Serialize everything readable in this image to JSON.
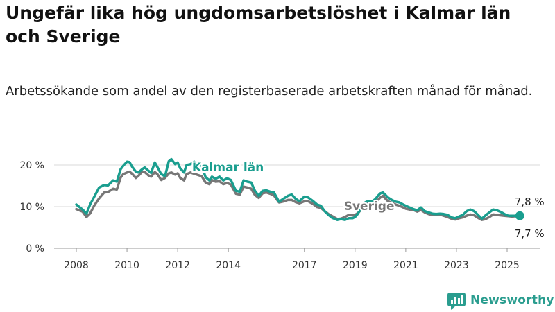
{
  "title": "Ungefär lika hög ungdomsarbetslöshet i Kalmar län och Sverige",
  "subtitle": "Arbetssökande som andel av den registerbaserade arbetskraften månad för månad.",
  "brand": "Newsworthy",
  "colors": {
    "kalmar": "#1a9e8f",
    "sverige": "#777777",
    "brand": "#2a9d8f",
    "grid": "#d9d9d9"
  },
  "chart_data": {
    "type": "line",
    "title": "Ungefär lika hög ungdomsarbetslöshet i Kalmar län och Sverige",
    "xlabel": "",
    "ylabel": "",
    "xlim": [
      2008,
      2026
    ],
    "ylim": [
      0,
      20
    ],
    "x_ticks": [
      2008,
      2010,
      2012,
      2014,
      2017,
      2019,
      2021,
      2023,
      2025
    ],
    "y_ticks": [
      {
        "value": 0,
        "label": "0 %"
      },
      {
        "value": 10,
        "label": "10 %"
      },
      {
        "value": 20,
        "label": "20 %"
      }
    ],
    "grid": true,
    "series": [
      {
        "name": "Kalmar län",
        "x": [
          2008.0,
          2008.25,
          2008.4,
          2008.55,
          2008.7,
          2008.9,
          2009.1,
          2009.25,
          2009.45,
          2009.6,
          2009.75,
          2009.85,
          2010.0,
          2010.1,
          2010.2,
          2010.35,
          2010.45,
          2010.6,
          2010.7,
          2010.85,
          2010.95,
          2011.1,
          2011.2,
          2011.35,
          2011.5,
          2011.65,
          2011.75,
          2011.9,
          2012.0,
          2012.1,
          2012.25,
          2012.35,
          2012.5,
          2012.65,
          2012.8,
          2012.95,
          2013.1,
          2013.25,
          2013.35,
          2013.5,
          2013.65,
          2013.8,
          2013.95,
          2014.1,
          2014.3,
          2014.45,
          2014.6,
          2014.75,
          2014.9,
          2015.05,
          2015.2,
          2015.35,
          2015.5,
          2015.65,
          2015.8,
          2016.0,
          2016.15,
          2016.35,
          2016.5,
          2016.65,
          2016.8,
          2017.0,
          2017.15,
          2017.35,
          2017.5,
          2017.65,
          2017.8,
          2017.95,
          2018.1,
          2018.3,
          2018.45,
          2018.6,
          2018.75,
          2018.9,
          2019.0,
          2019.1,
          2019.2,
          2019.3,
          2019.45,
          2019.55,
          2019.7,
          2019.8,
          2019.9,
          2020.0,
          2020.1,
          2020.2,
          2020.3,
          2020.45,
          2020.6,
          2020.75,
          2020.9,
          2021.0,
          2021.15,
          2021.3,
          2021.45,
          2021.6,
          2021.75,
          2021.9,
          2022.05,
          2022.2,
          2022.35,
          2022.5,
          2022.65,
          2022.8,
          2022.95,
          2023.1,
          2023.25,
          2023.4,
          2023.55,
          2023.7,
          2023.85,
          2024.0,
          2024.15,
          2024.3,
          2024.45,
          2024.6,
          2024.75,
          2024.9,
          2025.05,
          2025.2,
          2025.35,
          2025.5
        ],
        "y": [
          10.5,
          9.3,
          8.3,
          10.6,
          12.3,
          14.6,
          15.2,
          15.1,
          16.3,
          16.0,
          19.0,
          19.8,
          20.8,
          20.7,
          19.6,
          18.4,
          18.2,
          19.0,
          19.4,
          18.6,
          18.1,
          20.6,
          19.5,
          17.8,
          17.3,
          20.9,
          21.4,
          20.2,
          20.6,
          19.2,
          18.2,
          20.0,
          20.2,
          20.8,
          20.1,
          19.8,
          17.1,
          16.3,
          17.2,
          16.7,
          17.2,
          16.3,
          16.8,
          16.4,
          13.8,
          13.6,
          16.3,
          16.0,
          15.8,
          13.8,
          12.6,
          13.8,
          13.9,
          13.6,
          13.4,
          11.2,
          11.8,
          12.6,
          12.9,
          11.9,
          11.3,
          12.4,
          12.2,
          11.3,
          10.5,
          10.2,
          8.9,
          8.0,
          7.3,
          6.8,
          7.0,
          6.8,
          7.2,
          7.2,
          7.5,
          8.2,
          9.2,
          10.6,
          11.2,
          11.3,
          11.4,
          11.8,
          12.6,
          13.2,
          13.4,
          12.8,
          12.2,
          11.6,
          11.2,
          11.0,
          10.5,
          10.2,
          9.8,
          9.4,
          9.1,
          9.8,
          8.9,
          8.6,
          8.3,
          8.2,
          8.3,
          8.2,
          8.0,
          7.4,
          7.2,
          7.6,
          8.0,
          8.9,
          9.3,
          8.9,
          8.0,
          7.1,
          7.9,
          8.6,
          9.3,
          9.1,
          8.7,
          8.2,
          7.8,
          7.8,
          7.8,
          7.8
        ]
      },
      {
        "name": "Sverige",
        "x": [
          2008.0,
          2008.25,
          2008.4,
          2008.55,
          2008.7,
          2008.9,
          2009.1,
          2009.25,
          2009.45,
          2009.6,
          2009.75,
          2009.85,
          2010.0,
          2010.1,
          2010.2,
          2010.35,
          2010.45,
          2010.6,
          2010.7,
          2010.85,
          2010.95,
          2011.1,
          2011.2,
          2011.35,
          2011.5,
          2011.65,
          2011.75,
          2011.9,
          2012.0,
          2012.1,
          2012.25,
          2012.35,
          2012.5,
          2012.65,
          2012.8,
          2012.95,
          2013.1,
          2013.25,
          2013.35,
          2013.5,
          2013.65,
          2013.8,
          2013.95,
          2014.1,
          2014.3,
          2014.45,
          2014.6,
          2014.75,
          2014.9,
          2015.05,
          2015.2,
          2015.35,
          2015.5,
          2015.65,
          2015.8,
          2016.0,
          2016.15,
          2016.35,
          2016.5,
          2016.65,
          2016.8,
          2017.0,
          2017.15,
          2017.35,
          2017.5,
          2017.65,
          2017.8,
          2017.95,
          2018.1,
          2018.3,
          2018.45,
          2018.6,
          2018.75,
          2018.9,
          2019.0,
          2019.1,
          2019.2,
          2019.3,
          2019.45,
          2019.55,
          2019.7,
          2019.8,
          2019.9,
          2020.0,
          2020.1,
          2020.2,
          2020.3,
          2020.45,
          2020.6,
          2020.75,
          2020.9,
          2021.0,
          2021.15,
          2021.3,
          2021.45,
          2021.6,
          2021.75,
          2021.9,
          2022.05,
          2022.2,
          2022.35,
          2022.5,
          2022.65,
          2022.8,
          2022.95,
          2023.1,
          2023.25,
          2023.4,
          2023.55,
          2023.7,
          2023.85,
          2024.0,
          2024.15,
          2024.3,
          2024.45,
          2024.6,
          2024.75,
          2024.9,
          2025.05,
          2025.2,
          2025.35,
          2025.5
        ],
        "y": [
          9.4,
          8.8,
          7.5,
          8.4,
          10.2,
          12.0,
          13.4,
          13.5,
          14.3,
          14.1,
          17.0,
          17.8,
          18.2,
          18.4,
          17.9,
          16.9,
          17.4,
          18.4,
          18.3,
          17.5,
          17.2,
          18.3,
          17.8,
          16.4,
          16.9,
          18.0,
          18.2,
          17.7,
          18.0,
          16.9,
          16.3,
          17.8,
          18.2,
          17.9,
          17.6,
          17.3,
          15.8,
          15.4,
          16.4,
          16.0,
          16.1,
          15.4,
          15.7,
          15.3,
          13.1,
          12.9,
          14.8,
          14.6,
          14.3,
          12.8,
          12.1,
          13.2,
          13.4,
          13.1,
          12.7,
          11.0,
          11.2,
          11.6,
          11.6,
          11.1,
          10.8,
          11.3,
          11.3,
          10.6,
          9.9,
          9.7,
          8.9,
          8.2,
          7.7,
          7.0,
          7.1,
          7.5,
          8.0,
          7.9,
          8.0,
          8.4,
          9.0,
          10.2,
          10.5,
          10.9,
          10.8,
          11.0,
          11.6,
          12.2,
          12.6,
          11.9,
          11.3,
          10.9,
          10.5,
          10.2,
          9.8,
          9.5,
          9.3,
          9.2,
          8.8,
          9.2,
          8.6,
          8.2,
          8.0,
          8.0,
          8.1,
          7.8,
          7.5,
          7.1,
          6.9,
          7.2,
          7.4,
          7.8,
          8.1,
          7.9,
          7.3,
          6.8,
          7.0,
          7.5,
          8.1,
          8.0,
          7.9,
          7.8,
          7.7,
          7.6,
          7.7,
          7.7
        ]
      }
    ],
    "annotations": [
      {
        "text": "Kalmar län",
        "series": "Kalmar län",
        "x": 2012.35,
        "y": 18.5
      },
      {
        "text": "Sverige",
        "series": "Sverige",
        "x": 2018.45,
        "y": 9.2
      },
      {
        "text": "7,8 %",
        "series": "Kalmar län",
        "x": 2025.5,
        "y": 7.8,
        "placement": "above"
      },
      {
        "text": "7,7 %",
        "series": "Sverige",
        "x": 2025.5,
        "y": 7.7,
        "placement": "below"
      }
    ]
  }
}
